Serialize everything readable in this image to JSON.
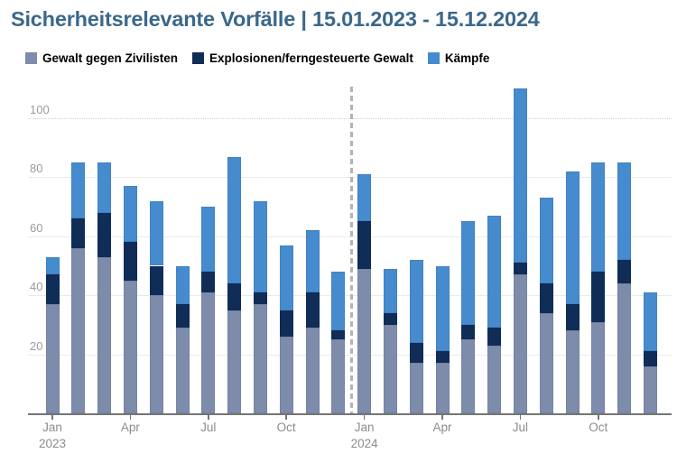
{
  "title": "Sicherheitsrelevante Vorfälle | 15.01.2023 - 15.12.2024",
  "legend": {
    "items": [
      {
        "label": "Gewalt gegen Zivilisten",
        "color": "#7d8cab"
      },
      {
        "label": "Explosionen/ferngesteuerte Gewalt",
        "color": "#0f2d57"
      },
      {
        "label": "Kämpfe",
        "color": "#468bce"
      }
    ]
  },
  "chart_data": {
    "type": "bar",
    "stacked": true,
    "title": "Sicherheitsrelevante Vorfälle | 15.01.2023 - 15.12.2024",
    "categories": [
      "Jan 2023",
      "Feb 2023",
      "Mar 2023",
      "Apr 2023",
      "May 2023",
      "Jun 2023",
      "Jul 2023",
      "Aug 2023",
      "Sep 2023",
      "Oct 2023",
      "Nov 2023",
      "Dec 2023",
      "Jan 2024",
      "Feb 2024",
      "Mar 2024",
      "Apr 2024",
      "May 2024",
      "Jun 2024",
      "Jul 2024",
      "Aug 2024",
      "Sep 2024",
      "Oct 2024",
      "Nov 2024",
      "Dec 2024"
    ],
    "series": [
      {
        "name": "Gewalt gegen Zivilisten",
        "color": "#7d8cab",
        "values": [
          37,
          56,
          53,
          45,
          40,
          29,
          41,
          35,
          37,
          26,
          29,
          25,
          49,
          30,
          17,
          17,
          25,
          23,
          47,
          34,
          28,
          31,
          44,
          16
        ]
      },
      {
        "name": "Explosionen/ferngesteuerte Gewalt",
        "color": "#0f2d57",
        "values": [
          10,
          10,
          15,
          13,
          10,
          8,
          7,
          9,
          4,
          9,
          12,
          3,
          16,
          4,
          7,
          4,
          5,
          6,
          4,
          10,
          9,
          17,
          8,
          5
        ]
      },
      {
        "name": "Kämpfe",
        "color": "#468bce",
        "values": [
          6,
          19,
          17,
          19,
          22,
          13,
          22,
          43,
          31,
          22,
          21,
          20,
          16,
          15,
          28,
          29,
          35,
          38,
          59,
          29,
          45,
          37,
          33,
          20
        ]
      }
    ],
    "totals": [
      53,
      85,
      85,
      77,
      72,
      50,
      70,
      87,
      72,
      57,
      62,
      48,
      81,
      49,
      52,
      50,
      65,
      67,
      110,
      73,
      82,
      85,
      85,
      41
    ],
    "y_ticks": [
      20,
      40,
      60,
      80,
      100
    ],
    "ylim": [
      0,
      110
    ],
    "grid": true,
    "legend_position": "top",
    "x_ticks": [
      {
        "index": 0,
        "label": "Jan",
        "year": "2023"
      },
      {
        "index": 3,
        "label": "Apr"
      },
      {
        "index": 6,
        "label": "Jul"
      },
      {
        "index": 9,
        "label": "Oct"
      },
      {
        "index": 12,
        "label": "Jan",
        "year": "2024"
      },
      {
        "index": 15,
        "label": "Apr"
      },
      {
        "index": 18,
        "label": "Jul"
      },
      {
        "index": 21,
        "label": "Oct"
      }
    ],
    "separator_after_index": 11
  }
}
